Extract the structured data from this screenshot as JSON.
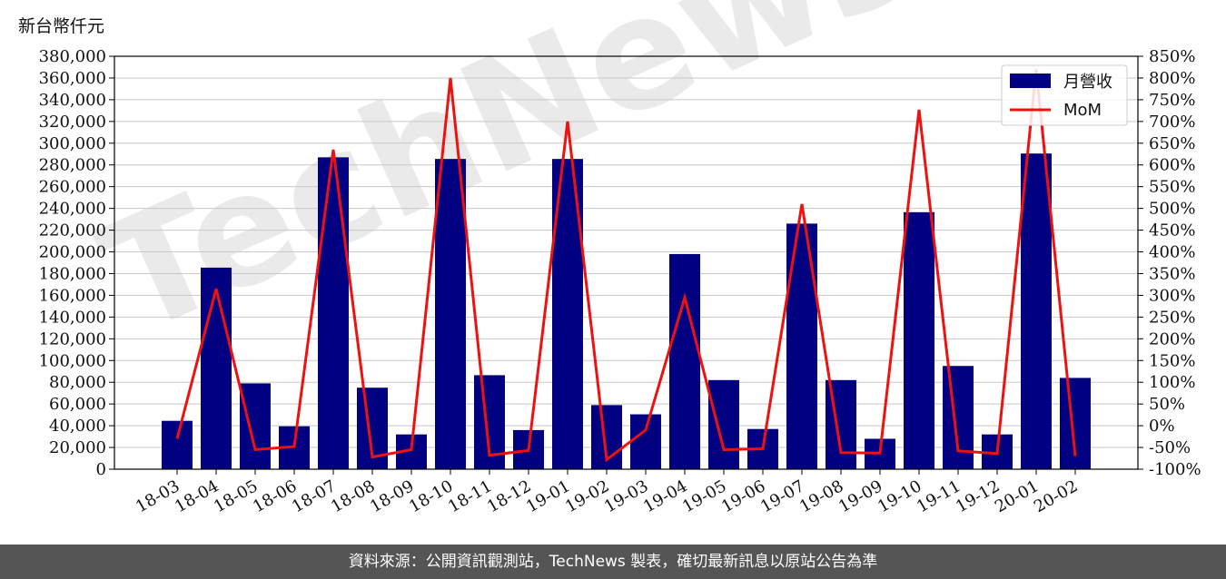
{
  "chart_data": {
    "type": "bar",
    "y_unit_label": "新台幣仟元",
    "categories": [
      "18-03",
      "18-04",
      "18-05",
      "18-06",
      "18-07",
      "18-08",
      "18-09",
      "18-10",
      "18-11",
      "18-12",
      "19-01",
      "19-02",
      "19-03",
      "19-04",
      "19-05",
      "19-06",
      "19-07",
      "19-08",
      "19-09",
      "19-10",
      "19-11",
      "19-12",
      "20-01",
      "20-02"
    ],
    "series": [
      {
        "name": "月營收",
        "type": "bar",
        "axis": "left",
        "color": "#000080",
        "values": [
          44500,
          185500,
          79000,
          39500,
          287000,
          75000,
          32000,
          285500,
          86500,
          36000,
          285500,
          59000,
          50500,
          198000,
          82000,
          37000,
          226000,
          82000,
          28000,
          236500,
          95000,
          32000,
          290500,
          84000
        ]
      },
      {
        "name": "MoM",
        "type": "line",
        "axis": "right",
        "color": "#ee1111",
        "values": [
          -30,
          315,
          -55,
          -48,
          635,
          -72,
          -55,
          800,
          -68,
          -57,
          700,
          -78,
          -10,
          295,
          -55,
          -53,
          510,
          -62,
          -63,
          727,
          -58,
          -64,
          820,
          -70
        ]
      }
    ],
    "ylim_left": [
      0,
      380000
    ],
    "ylim_right": [
      -100,
      850
    ],
    "left_ticks": [
      0,
      20000,
      40000,
      60000,
      80000,
      100000,
      120000,
      140000,
      160000,
      180000,
      200000,
      220000,
      240000,
      260000,
      280000,
      300000,
      320000,
      340000,
      360000,
      380000
    ],
    "left_tick_labels": [
      "0",
      "20,000",
      "40,000",
      "60,000",
      "80,000",
      "100,000",
      "120,000",
      "140,000",
      "160,000",
      "180,000",
      "200,000",
      "220,000",
      "240,000",
      "260,000",
      "280,000",
      "300,000",
      "320,000",
      "340,000",
      "360,000",
      "380,000"
    ],
    "right_ticks": [
      -100,
      -50,
      0,
      50,
      100,
      150,
      200,
      250,
      300,
      350,
      400,
      450,
      500,
      550,
      600,
      650,
      700,
      750,
      800,
      850
    ],
    "right_tick_labels": [
      "-100%",
      "-50%",
      "0%",
      "50%",
      "100%",
      "150%",
      "200%",
      "250%",
      "300%",
      "350%",
      "400%",
      "450%",
      "500%",
      "550%",
      "600%",
      "650%",
      "700%",
      "750%",
      "800%",
      "850%"
    ],
    "grid": true,
    "legend_position": "top-right",
    "watermark": "TechNews"
  },
  "footer": {
    "source_text": "資料來源：公開資訊觀測站，TechNews 製表，確切最新訊息以原站公告為準"
  }
}
